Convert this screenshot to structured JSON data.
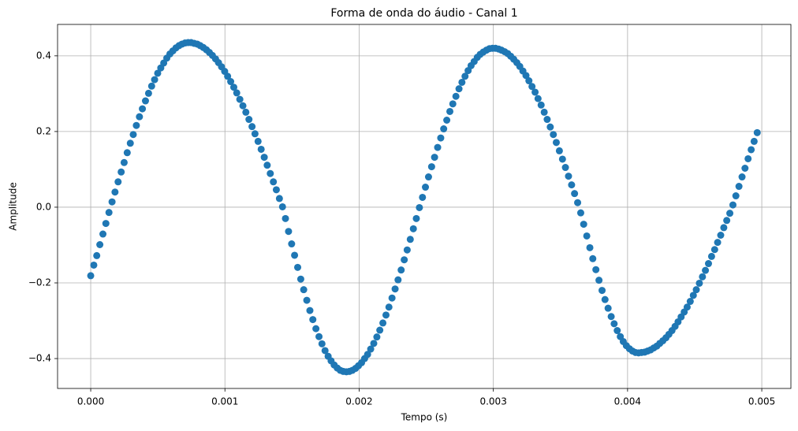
{
  "chart_data": {
    "type": "scatter",
    "title": "Forma de onda do áudio - Canal 1",
    "x_label": "Tempo (s)",
    "y_label": "Amplitude",
    "color": "#1f77b4",
    "grid": true,
    "xlim": [
      -0.000247,
      0.005217
    ],
    "ylim": [
      -0.479,
      0.483
    ],
    "xticks": [
      {
        "value": 0,
        "label": "0.000"
      },
      {
        "value": 0.001,
        "label": "0.001"
      },
      {
        "value": 0.002,
        "label": "0.002"
      },
      {
        "value": 0.003,
        "label": "0.003"
      },
      {
        "value": 0.004,
        "label": "0.004"
      },
      {
        "value": 0.005,
        "label": "0.005"
      }
    ],
    "yticks": [
      {
        "value": -0.4,
        "label": "−0.4"
      },
      {
        "value": -0.2,
        "label": "−0.2"
      },
      {
        "value": 0,
        "label": "0.0"
      },
      {
        "value": 0.2,
        "label": "0.2"
      },
      {
        "value": 0.4,
        "label": "0.4"
      }
    ],
    "x": [
      0,
      2.3e-05,
      4.5e-05,
      6.8e-05,
      9.1e-05,
      0.000113,
      0.000136,
      0.000159,
      0.000181,
      0.000204,
      0.000227,
      0.000249,
      0.000272,
      0.000295,
      0.000317,
      0.00034,
      0.000363,
      0.000385,
      0.000408,
      0.000431,
      0.000454,
      0.000476,
      0.000499,
      0.000522,
      0.000544,
      0.000567,
      0.00059,
      0.000612,
      0.000635,
      0.000658,
      0.00068,
      0.000703,
      0.000726,
      0.000748,
      0.000771,
      0.000794,
      0.000816,
      0.000839,
      0.000862,
      0.000884,
      0.000907,
      0.00093,
      0.000952,
      0.000975,
      0.000998,
      0.00102,
      0.001043,
      0.001066,
      0.001088,
      0.001111,
      0.001134,
      0.001156,
      0.001179,
      0.001202,
      0.001224,
      0.001247,
      0.00127,
      0.001293,
      0.001315,
      0.001338,
      0.001361,
      0.001383,
      0.001406,
      0.001429,
      0.001451,
      0.001474,
      0.001497,
      0.001519,
      0.001542,
      0.001565,
      0.001587,
      0.00161,
      0.001633,
      0.001655,
      0.001678,
      0.001701,
      0.001723,
      0.001746,
      0.001769,
      0.001791,
      0.001814,
      0.001837,
      0.001859,
      0.001882,
      0.001905,
      0.001927,
      0.00195,
      0.001973,
      0.001995,
      0.002018,
      0.002041,
      0.002063,
      0.002086,
      0.002109,
      0.002132,
      0.002154,
      0.002177,
      0.0022,
      0.002222,
      0.002245,
      0.002268,
      0.00229,
      0.002313,
      0.002336,
      0.002358,
      0.002381,
      0.002404,
      0.002426,
      0.002449,
      0.002472,
      0.002494,
      0.002517,
      0.00254,
      0.002562,
      0.002585,
      0.002608,
      0.00263,
      0.002653,
      0.002676,
      0.002698,
      0.002721,
      0.002744,
      0.002766,
      0.002789,
      0.002812,
      0.002834,
      0.002857,
      0.00288,
      0.002902,
      0.002925,
      0.002948,
      0.002971,
      0.002993,
      0.003016,
      0.003039,
      0.003061,
      0.003084,
      0.003107,
      0.003129,
      0.003152,
      0.003175,
      0.003197,
      0.00322,
      0.003243,
      0.003265,
      0.003288,
      0.003311,
      0.003333,
      0.003356,
      0.003379,
      0.003401,
      0.003424,
      0.003447,
      0.003469,
      0.003492,
      0.003515,
      0.003537,
      0.00356,
      0.003583,
      0.003605,
      0.003628,
      0.003651,
      0.003673,
      0.003696,
      0.003719,
      0.003741,
      0.003764,
      0.003787,
      0.00381,
      0.003832,
      0.003855,
      0.003878,
      0.0039,
      0.003923,
      0.003946,
      0.003968,
      0.003991,
      0.004014,
      0.004036,
      0.004059,
      0.004082,
      0.004104,
      0.004127,
      0.00415,
      0.004172,
      0.004195,
      0.004218,
      0.00424,
      0.004263,
      0.004286,
      0.004308,
      0.004331,
      0.004354,
      0.004376,
      0.004399,
      0.004422,
      0.004444,
      0.004467,
      0.00449,
      0.004512,
      0.004535,
      0.004558,
      0.00458,
      0.004603,
      0.004626,
      0.004649,
      0.004671,
      0.004694,
      0.004717,
      0.004739,
      0.004762,
      0.004785,
      0.004807,
      0.00483,
      0.004853,
      0.004875,
      0.004898,
      0.004921,
      0.004943,
      0.004966
    ],
    "values": [
      -0.181,
      -0.153,
      -0.128,
      -0.099,
      -0.071,
      -0.043,
      -0.014,
      0.014,
      0.04,
      0.067,
      0.093,
      0.118,
      0.144,
      0.169,
      0.192,
      0.216,
      0.239,
      0.26,
      0.281,
      0.301,
      0.32,
      0.337,
      0.354,
      0.368,
      0.381,
      0.394,
      0.405,
      0.413,
      0.421,
      0.427,
      0.431,
      0.434,
      0.435,
      0.435,
      0.433,
      0.431,
      0.427,
      0.422,
      0.416,
      0.409,
      0.401,
      0.392,
      0.382,
      0.371,
      0.359,
      0.346,
      0.332,
      0.317,
      0.302,
      0.285,
      0.268,
      0.251,
      0.232,
      0.213,
      0.194,
      0.174,
      0.153,
      0.132,
      0.111,
      0.089,
      0.067,
      0.046,
      0.023,
      0.001,
      -0.03,
      -0.064,
      -0.097,
      -0.127,
      -0.159,
      -0.19,
      -0.218,
      -0.246,
      -0.273,
      -0.297,
      -0.321,
      -0.342,
      -0.361,
      -0.379,
      -0.394,
      -0.406,
      -0.417,
      -0.425,
      -0.431,
      -0.434,
      -0.435,
      -0.434,
      -0.431,
      -0.426,
      -0.419,
      -0.411,
      -0.4,
      -0.389,
      -0.375,
      -0.36,
      -0.343,
      -0.325,
      -0.306,
      -0.285,
      -0.264,
      -0.24,
      -0.216,
      -0.192,
      -0.166,
      -0.139,
      -0.113,
      -0.085,
      -0.057,
      -0.03,
      -0.001,
      0.026,
      0.053,
      0.08,
      0.107,
      0.132,
      0.158,
      0.183,
      0.207,
      0.23,
      0.253,
      0.273,
      0.293,
      0.313,
      0.33,
      0.346,
      0.361,
      0.374,
      0.385,
      0.396,
      0.404,
      0.41,
      0.415,
      0.419,
      0.42,
      0.42,
      0.418,
      0.415,
      0.411,
      0.406,
      0.399,
      0.391,
      0.382,
      0.372,
      0.36,
      0.348,
      0.334,
      0.319,
      0.304,
      0.287,
      0.27,
      0.251,
      0.232,
      0.212,
      0.192,
      0.171,
      0.149,
      0.127,
      0.105,
      0.082,
      0.059,
      0.036,
      0.012,
      -0.015,
      -0.045,
      -0.076,
      -0.107,
      -0.136,
      -0.165,
      -0.193,
      -0.22,
      -0.244,
      -0.267,
      -0.289,
      -0.308,
      -0.326,
      -0.342,
      -0.355,
      -0.366,
      -0.374,
      -0.38,
      -0.384,
      -0.385,
      -0.384,
      -0.383,
      -0.38,
      -0.377,
      -0.372,
      -0.367,
      -0.36,
      -0.353,
      -0.345,
      -0.336,
      -0.326,
      -0.315,
      -0.303,
      -0.29,
      -0.277,
      -0.264,
      -0.249,
      -0.233,
      -0.218,
      -0.201,
      -0.184,
      -0.167,
      -0.149,
      -0.13,
      -0.112,
      -0.093,
      -0.074,
      -0.054,
      -0.035,
      -0.016,
      0.006,
      0.03,
      0.055,
      0.08,
      0.103,
      0.128,
      0.152,
      0.174,
      0.197
    ]
  }
}
